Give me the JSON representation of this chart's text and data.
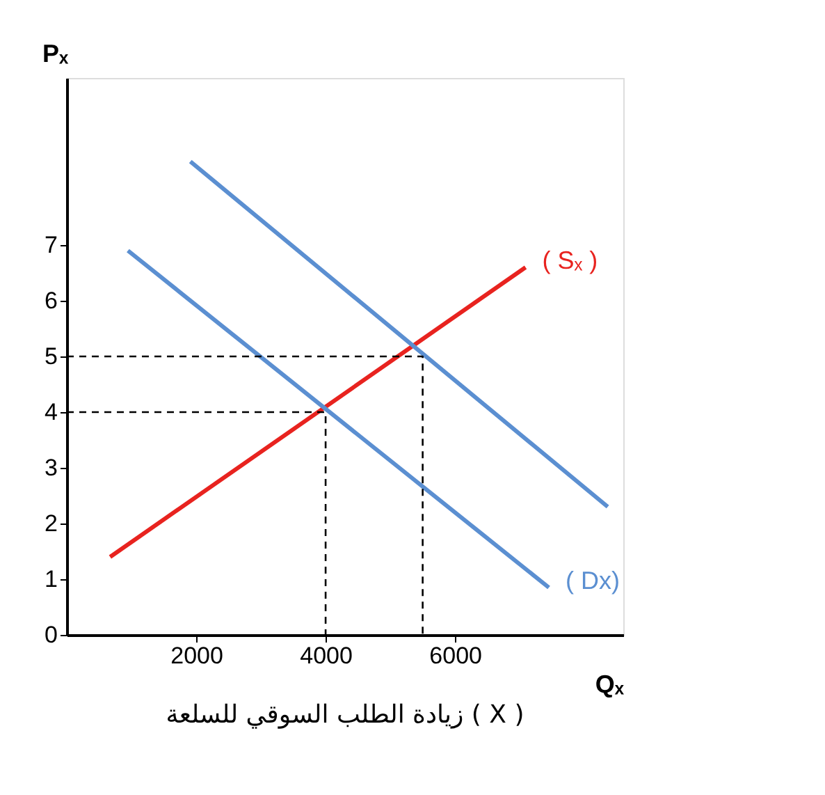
{
  "chart_data": {
    "type": "line",
    "title": "زيادة الطلب السوقي للسلعة ( X )",
    "xlabel": "Qₓ",
    "ylabel": "Pₓ",
    "xlim": [
      0,
      8600
    ],
    "ylim": [
      0,
      10
    ],
    "xticks": [
      2000,
      4000,
      6000
    ],
    "yticks": [
      0,
      1,
      2,
      3,
      4,
      5,
      6,
      7
    ],
    "grid": false,
    "marker": "none",
    "series": [
      {
        "name": "( Sₓ )",
        "color": "#e8231f",
        "x": [
          670,
          7090
        ],
        "values": [
          1.4,
          6.6
        ],
        "line_style": "solid"
      },
      {
        "name": "( Dx)",
        "color": "#5b8fd1",
        "x": [
          945,
          7450
        ],
        "values": [
          6.9,
          0.85
        ],
        "line_style": "solid"
      },
      {
        "color": "#5b8fd1",
        "x": [
          1910,
          8360
        ],
        "values": [
          8.5,
          2.3
        ],
        "line_style": "solid"
      },
      {
        "color": "#000000",
        "x": [
          0,
          4000,
          4000
        ],
        "values": [
          4,
          4,
          0
        ],
        "line_style": "dashed"
      },
      {
        "color": "#000000",
        "x": [
          0,
          5500,
          5500
        ],
        "values": [
          5,
          5,
          0
        ],
        "line_style": "dashed"
      }
    ]
  }
}
